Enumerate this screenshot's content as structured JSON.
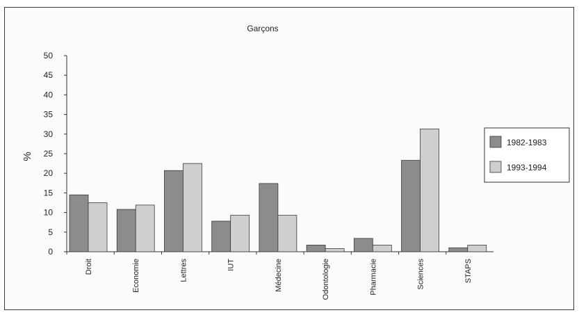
{
  "chart_data": {
    "type": "bar",
    "title": "Garçons",
    "xlabel": "",
    "ylabel": "%",
    "ylim": [
      0,
      50
    ],
    "yticks": [
      0,
      5,
      10,
      15,
      20,
      25,
      30,
      35,
      40,
      45,
      50
    ],
    "grid": false,
    "legend_position": "right",
    "categories": [
      "Droit",
      "Economie",
      "Lettres",
      "IUT",
      "Médecine",
      "Odontologie",
      "Pharmacie",
      "Sciences",
      "STAPS"
    ],
    "series": [
      {
        "name": "1982-1983",
        "color": "#8c8c8c",
        "values": [
          14.5,
          10.8,
          20.7,
          7.8,
          17.4,
          1.7,
          3.4,
          23.3,
          1.0
        ]
      },
      {
        "name": "1993-1994",
        "color": "#cfcfcf",
        "values": [
          12.5,
          11.9,
          22.5,
          9.3,
          9.3,
          0.8,
          1.7,
          31.3,
          1.7
        ]
      }
    ]
  }
}
